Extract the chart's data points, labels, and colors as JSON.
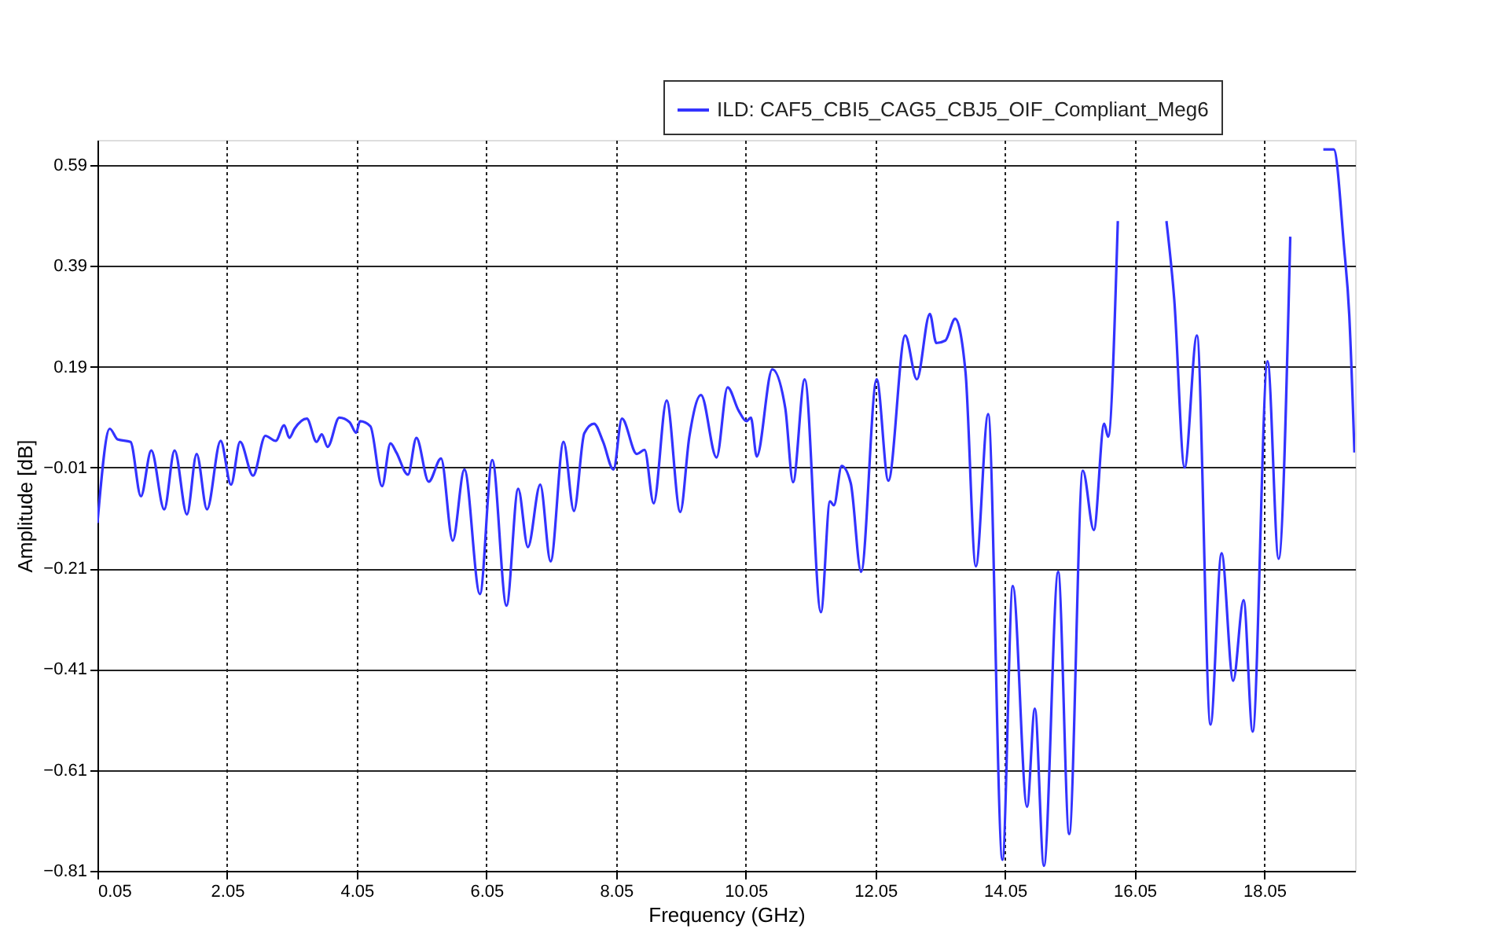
{
  "chart_data": {
    "type": "line",
    "xlabel": "Frequency (GHz)",
    "ylabel": "Amplitude [dB]",
    "xlim": [
      0.05,
      19.45
    ],
    "ylim": [
      -0.81,
      0.64
    ],
    "xticks": [
      0.05,
      2.05,
      4.05,
      6.05,
      8.05,
      10.05,
      12.05,
      14.05,
      16.05,
      18.05
    ],
    "yticks": [
      -0.81,
      -0.61,
      -0.41,
      -0.21,
      -0.01,
      0.19,
      0.39,
      0.59
    ],
    "grid": true,
    "legend": "top right",
    "line_style": "solid",
    "marker": "none",
    "series": [
      {
        "name": "ILD: CAF5_CBI5_CAG5_CBJ5_OIF_Compliant_Meg6",
        "color": "#3333ff",
        "x": [
          0.05,
          0.24,
          0.36,
          0.56,
          0.72,
          0.88,
          1.08,
          1.24,
          1.43,
          1.58,
          1.74,
          1.95,
          2.11,
          2.25,
          2.45,
          2.64,
          2.8,
          2.93,
          3.01,
          3.09,
          3.28,
          3.43,
          3.51,
          3.6,
          3.78,
          3.94,
          4.04,
          4.1,
          4.26,
          4.44,
          4.57,
          4.66,
          4.84,
          4.97,
          5.16,
          5.35,
          5.53,
          5.71,
          5.95,
          6.14,
          6.36,
          6.54,
          6.69,
          6.88,
          7.04,
          7.24,
          7.4,
          7.56,
          7.71,
          7.85,
          8.01,
          8.14,
          8.37,
          8.49,
          8.63,
          8.83,
          9.04,
          9.18,
          9.36,
          9.6,
          9.77,
          9.94,
          10.06,
          10.13,
          10.22,
          10.46,
          10.66,
          10.78,
          10.96,
          11.21,
          11.35,
          11.41,
          11.53,
          11.67,
          11.83,
          12.07,
          12.25,
          12.51,
          12.69,
          12.89,
          12.99,
          13.13,
          13.28,
          13.44,
          13.6,
          13.79,
          14.01,
          14.17,
          14.39,
          14.51,
          14.65,
          14.87,
          15.04,
          15.25,
          15.42,
          15.58,
          15.64,
          15.79,
          16.1,
          16.54,
          16.66,
          16.82,
          17.01,
          17.22,
          17.39,
          17.57,
          17.73,
          17.87,
          18.1,
          18.27,
          18.45,
          18.7,
          18.96,
          19.12,
          19.28,
          19.36,
          19.44
        ],
        "values": [
          -0.12,
          0.067,
          0.046,
          0.041,
          -0.067,
          0.024,
          -0.093,
          0.024,
          -0.103,
          0.017,
          -0.093,
          0.043,
          -0.044,
          0.041,
          -0.026,
          0.053,
          0.043,
          0.074,
          0.049,
          0.067,
          0.087,
          0.041,
          0.056,
          0.031,
          0.089,
          0.08,
          0.059,
          0.082,
          0.072,
          -0.047,
          0.038,
          0.02,
          -0.024,
          0.049,
          -0.038,
          0.008,
          -0.155,
          -0.014,
          -0.261,
          0.005,
          -0.284,
          -0.052,
          -0.168,
          -0.044,
          -0.196,
          0.041,
          -0.096,
          0.058,
          0.077,
          0.041,
          -0.014,
          0.087,
          0.017,
          0.025,
          -0.081,
          0.123,
          -0.098,
          0.051,
          0.134,
          0.01,
          0.149,
          0.103,
          0.082,
          0.089,
          0.012,
          0.185,
          0.108,
          -0.039,
          0.165,
          -0.297,
          -0.077,
          -0.085,
          -0.007,
          -0.041,
          -0.217,
          0.165,
          -0.036,
          0.252,
          0.165,
          0.295,
          0.237,
          0.242,
          0.285,
          0.18,
          -0.206,
          0.096,
          -0.788,
          -0.245,
          -0.683,
          -0.488,
          -0.8,
          -0.217,
          -0.737,
          -0.016,
          -0.134,
          0.077,
          0.051,
          0.479,
          null,
          0.479,
          0.324,
          -0.01,
          0.252,
          -0.52,
          -0.18,
          -0.433,
          -0.273,
          -0.534,
          0.201,
          -0.191,
          0.448,
          null,
          0.621,
          0.621,
          0.427,
          0.293,
          0.02
        ]
      }
    ]
  }
}
